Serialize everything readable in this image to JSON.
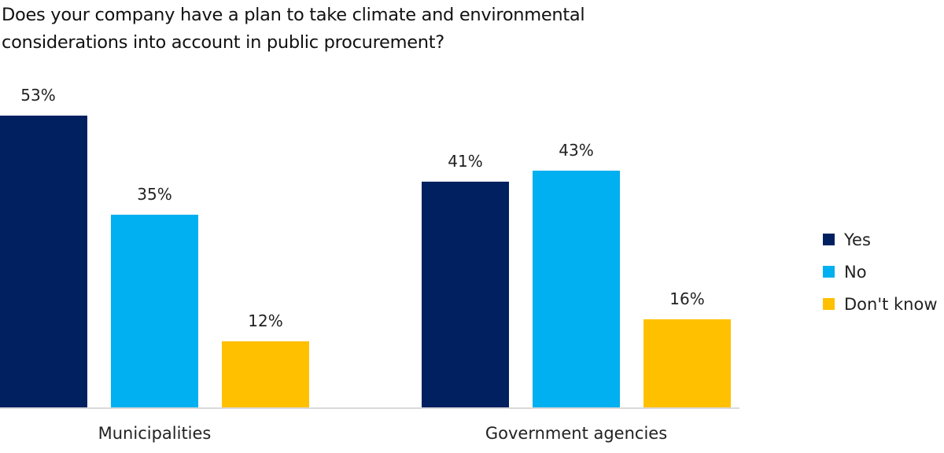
{
  "chart_data": {
    "type": "bar",
    "title": "Does your company have a plan to take climate and environmental considerations into account in public procurement?",
    "title_lines": [
      "Does your company have a plan to take climate and environmental",
      "considerations into account in public procurement?"
    ],
    "xlabel": "",
    "ylabel": "",
    "ylim": [
      0,
      53
    ],
    "grid": false,
    "legend_position": "right",
    "value_suffix": "%",
    "categories": [
      "Municipalities",
      "Government agencies"
    ],
    "series": [
      {
        "name": "Yes",
        "color": "#002060",
        "values": [
          53,
          41
        ]
      },
      {
        "name": "No",
        "color": "#00B0F0",
        "values": [
          35,
          43
        ]
      },
      {
        "name": "Don't know",
        "color": "#FFC000",
        "values": [
          12,
          16
        ]
      }
    ],
    "data_labels": [
      [
        "53%",
        "41%"
      ],
      [
        "35%",
        "43%"
      ],
      [
        "12%",
        "16%"
      ]
    ]
  },
  "colors": {
    "axis": "#d9d9d9",
    "text": "#222222"
  }
}
